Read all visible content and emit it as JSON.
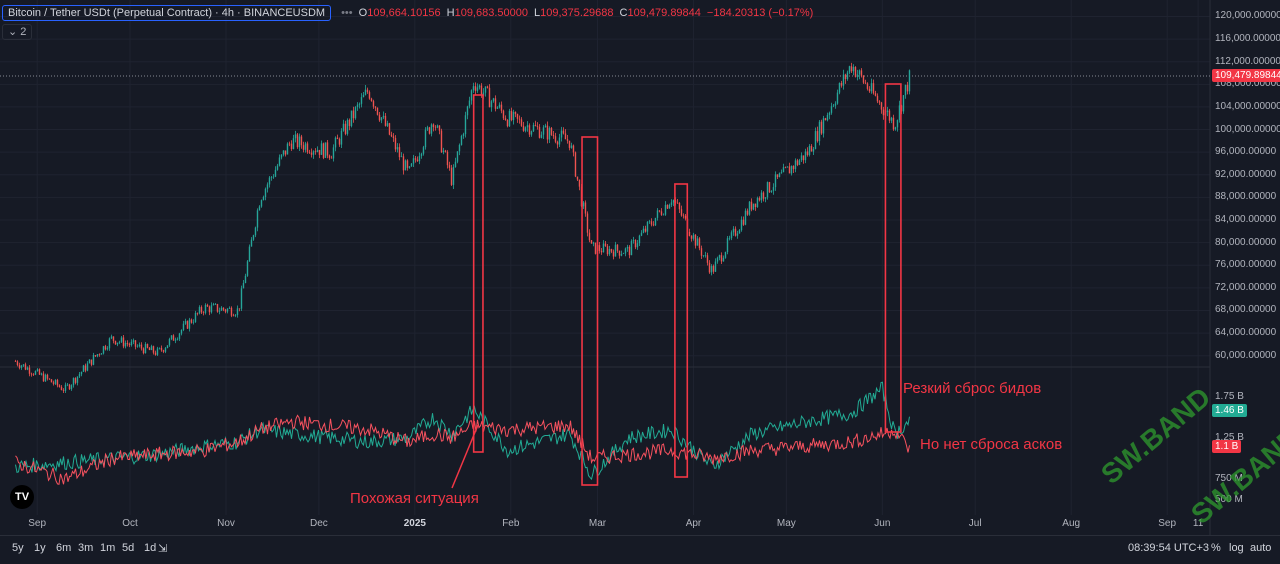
{
  "header": {
    "symbol": "Bitcoin / Tether USDt (Perpetual Contract) · 4h · BINANCEUSDM",
    "open_label": "O",
    "open_value": "109,664.10156",
    "high_label": "H",
    "high_value": "109,683.50000",
    "low_label": "L",
    "low_value": "109,375.29688",
    "close_label": "C",
    "close_value": "109,479.89844",
    "change_value": "−184.20313 (−0.17%)",
    "more": "•••"
  },
  "indicator_count": "2",
  "price_axis": [
    "120,000.00000",
    "116,000.00000",
    "112,000.00000",
    "108,000.00000",
    "104,000.00000",
    "100,000.00000",
    "96,000.00000",
    "92,000.00000",
    "88,000.00000",
    "84,000.00000",
    "80,000.00000",
    "76,000.00000",
    "72,000.00000",
    "68,000.00000",
    "64,000.00000",
    "60,000.00000"
  ],
  "current_price_tag": "109,479.89844",
  "volume_axis": [
    "1.75 B",
    "1.25 B",
    "750 M",
    "500 M"
  ],
  "bids_tag": "1.46 B",
  "asks_tag": "1.1 B",
  "annotations": {
    "similar": "Похожая ситуация",
    "bids_drop": "Резкий сброс бидов",
    "no_asks_drop": "Но нет сброса асков"
  },
  "x_axis": [
    "Sep",
    "Oct",
    "Nov",
    "Dec",
    "2025",
    "Feb",
    "Mar",
    "Apr",
    "May",
    "Jun",
    "Jul",
    "Aug",
    "Sep",
    "11"
  ],
  "timeframes": [
    "5y",
    "1y",
    "6m",
    "3m",
    "1m",
    "5d",
    "1d"
  ],
  "bottom_right": {
    "time": "08:39:54 UTC+3",
    "pct": "%",
    "log": "log",
    "auto": "auto"
  },
  "tv_logo": "TV",
  "watermark": "SW.BAND",
  "colors": {
    "up": "#26a69a",
    "down": "#ef5350",
    "bids": "#22ab94",
    "asks": "#f7525f",
    "highlight": "#f23645",
    "bg": "#161a25"
  },
  "chart_data": {
    "type": "candlestick",
    "title": "Bitcoin / Tether USDt (Perpetual Contract) · 4h · BINANCEUSDM",
    "x": [
      "2024-08-25",
      "2024-09-10",
      "2024-09-25",
      "2024-10-10",
      "2024-10-25",
      "2024-11-05",
      "2024-11-12",
      "2024-11-22",
      "2024-12-05",
      "2024-12-17",
      "2024-12-30",
      "2025-01-07",
      "2025-01-13",
      "2025-01-20",
      "2025-01-31",
      "2025-02-20",
      "2025-02-27",
      "2025-03-11",
      "2025-03-25",
      "2025-04-07",
      "2025-04-20",
      "2025-05-08",
      "2025-05-22",
      "2025-06-01",
      "2025-06-05",
      "2025-06-10"
    ],
    "price": [
      59000,
      54000,
      63000,
      60500,
      68500,
      68000,
      88000,
      98000,
      96000,
      107000,
      92000,
      102000,
      91000,
      108500,
      102000,
      98000,
      79000,
      78500,
      88000,
      75000,
      87000,
      96000,
      111500,
      104000,
      101000,
      109480
    ],
    "ylim": [
      58000,
      121500
    ],
    "series": [
      {
        "name": "bids",
        "values": [
          0.9,
          0.95,
          1.0,
          1.05,
          1.15,
          1.2,
          1.35,
          1.3,
          1.25,
          1.2,
          1.25,
          1.5,
          1.3,
          1.6,
          1.1,
          1.3,
          0.8,
          1.25,
          1.35,
          0.9,
          1.3,
          1.45,
          1.55,
          1.85,
          1.3,
          1.46
        ]
      },
      {
        "name": "asks",
        "values": [
          0.95,
          0.75,
          1.0,
          1.05,
          1.1,
          1.2,
          1.35,
          1.45,
          1.4,
          1.35,
          1.2,
          1.3,
          1.25,
          1.4,
          1.35,
          1.4,
          1.0,
          1.05,
          1.1,
          1.0,
          1.1,
          1.15,
          1.2,
          1.3,
          1.35,
          1.1
        ]
      }
    ],
    "volume_ylim": [
      0.35,
      2.05
    ],
    "highlights": [
      {
        "from": "2025-01-20",
        "to": "2025-01-23"
      },
      {
        "from": "2025-02-24",
        "to": "2025-03-01"
      },
      {
        "from": "2025-03-26",
        "to": "2025-03-30"
      },
      {
        "from": "2025-06-02",
        "to": "2025-06-07"
      }
    ]
  }
}
